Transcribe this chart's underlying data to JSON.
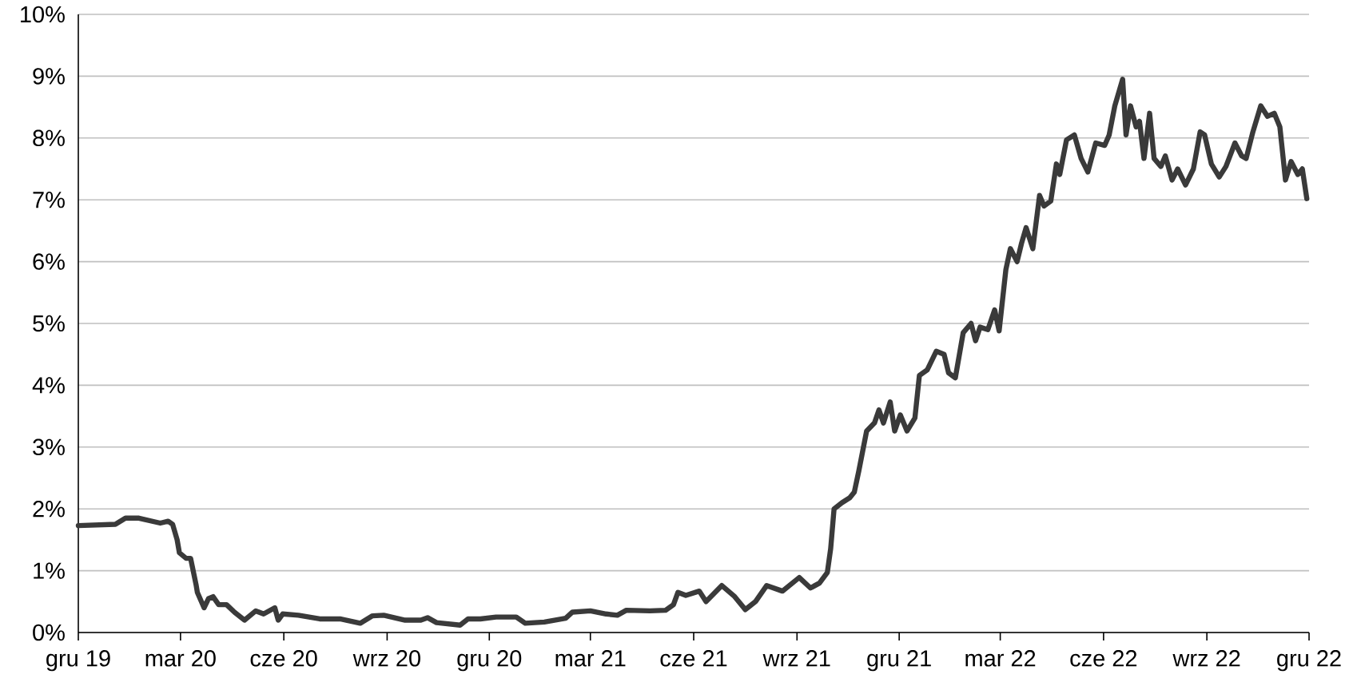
{
  "chart_data": {
    "type": "line",
    "color": "#3a3a3a",
    "line_style": "solid",
    "grid": "y",
    "xlim": [
      "2019-12-01",
      "2022-12-01"
    ],
    "ylim": [
      0,
      10
    ],
    "xticks": [
      {
        "value": "2019-12-01",
        "label": "gru 19"
      },
      {
        "value": "2020-03-01",
        "label": "mar 20"
      },
      {
        "value": "2020-06-01",
        "label": "cze 20"
      },
      {
        "value": "2020-09-01",
        "label": "wrz 20"
      },
      {
        "value": "2020-12-01",
        "label": "gru 20"
      },
      {
        "value": "2021-03-01",
        "label": "mar 21"
      },
      {
        "value": "2021-06-01",
        "label": "cze 21"
      },
      {
        "value": "2021-09-01",
        "label": "wrz 21"
      },
      {
        "value": "2021-12-01",
        "label": "gru 21"
      },
      {
        "value": "2022-03-01",
        "label": "mar 22"
      },
      {
        "value": "2022-06-01",
        "label": "cze 22"
      },
      {
        "value": "2022-09-01",
        "label": "wrz 22"
      },
      {
        "value": "2022-12-01",
        "label": "gru 22"
      }
    ],
    "yticks": [
      {
        "value": 0,
        "label": "0%"
      },
      {
        "value": 1,
        "label": "1%"
      },
      {
        "value": 2,
        "label": "2%"
      },
      {
        "value": 3,
        "label": "3%"
      },
      {
        "value": 4,
        "label": "4%"
      },
      {
        "value": 5,
        "label": "5%"
      },
      {
        "value": 6,
        "label": "6%"
      },
      {
        "value": 7,
        "label": "7%"
      },
      {
        "value": 8,
        "label": "8%"
      },
      {
        "value": 9,
        "label": "9%"
      },
      {
        "value": 10,
        "label": "10%"
      }
    ],
    "x": [
      "2019-12-01",
      "2020-01-03",
      "2020-01-12",
      "2020-01-24",
      "2020-02-12",
      "2020-02-19",
      "2020-02-23",
      "2020-02-27",
      "2020-02-29",
      "2020-03-06",
      "2020-03-10",
      "2020-03-15",
      "2020-03-16",
      "2020-03-22",
      "2020-03-26",
      "2020-03-30",
      "2020-04-04",
      "2020-04-11",
      "2020-04-18",
      "2020-04-27",
      "2020-05-07",
      "2020-05-14",
      "2020-05-24",
      "2020-05-27",
      "2020-05-31",
      "2020-06-14",
      "2020-07-03",
      "2020-07-21",
      "2020-08-08",
      "2020-08-19",
      "2020-08-29",
      "2020-09-17",
      "2020-10-01",
      "2020-10-07",
      "2020-10-15",
      "2020-11-05",
      "2020-11-12",
      "2020-11-23",
      "2020-12-07",
      "2020-12-25",
      "2021-01-02",
      "2021-01-19",
      "2021-02-07",
      "2021-02-13",
      "2021-03-01",
      "2021-03-15",
      "2021-03-25",
      "2021-04-02",
      "2021-04-23",
      "2021-05-07",
      "2021-05-14",
      "2021-05-18",
      "2021-05-25",
      "2021-06-06",
      "2021-06-12",
      "2021-06-26",
      "2021-07-07",
      "2021-07-17",
      "2021-07-26",
      "2021-08-05",
      "2021-08-19",
      "2021-09-03",
      "2021-09-13",
      "2021-09-21",
      "2021-09-28",
      "2021-10-01",
      "2021-10-04",
      "2021-10-11",
      "2021-10-18",
      "2021-10-22",
      "2021-10-26",
      "2021-11-02",
      "2021-11-09",
      "2021-11-13",
      "2021-11-17",
      "2021-11-23",
      "2021-11-27",
      "2021-12-02",
      "2021-12-08",
      "2021-12-15",
      "2021-12-19",
      "2021-12-26",
      "2022-01-03",
      "2022-01-10",
      "2022-01-14",
      "2022-01-20",
      "2022-01-27",
      "2022-02-03",
      "2022-02-07",
      "2022-02-11",
      "2022-02-18",
      "2022-02-24",
      "2022-02-28",
      "2022-03-06",
      "2022-03-10",
      "2022-03-16",
      "2022-03-20",
      "2022-03-24",
      "2022-03-30",
      "2022-04-05",
      "2022-04-09",
      "2022-04-15",
      "2022-04-20",
      "2022-04-23",
      "2022-04-29",
      "2022-05-06",
      "2022-05-12",
      "2022-05-18",
      "2022-05-25",
      "2022-06-02",
      "2022-06-06",
      "2022-06-11",
      "2022-06-18",
      "2022-06-21",
      "2022-06-25",
      "2022-06-30",
      "2022-07-03",
      "2022-07-07",
      "2022-07-12",
      "2022-07-16",
      "2022-07-22",
      "2022-07-26",
      "2022-08-01",
      "2022-08-06",
      "2022-08-13",
      "2022-08-20",
      "2022-08-26",
      "2022-08-30",
      "2022-09-05",
      "2022-09-12",
      "2022-09-18",
      "2022-09-26",
      "2022-10-02",
      "2022-10-06",
      "2022-10-12",
      "2022-10-19",
      "2022-10-25",
      "2022-10-31",
      "2022-11-05",
      "2022-11-10",
      "2022-11-15",
      "2022-11-21",
      "2022-11-25",
      "2022-11-29"
    ],
    "values": [
      1.73,
      1.75,
      1.85,
      1.85,
      1.77,
      1.8,
      1.75,
      1.5,
      1.29,
      1.2,
      1.2,
      0.76,
      0.65,
      0.4,
      0.55,
      0.58,
      0.45,
      0.45,
      0.33,
      0.2,
      0.35,
      0.3,
      0.4,
      0.2,
      0.3,
      0.28,
      0.22,
      0.22,
      0.15,
      0.27,
      0.28,
      0.2,
      0.2,
      0.24,
      0.16,
      0.12,
      0.22,
      0.22,
      0.25,
      0.25,
      0.15,
      0.17,
      0.23,
      0.33,
      0.35,
      0.3,
      0.28,
      0.36,
      0.35,
      0.36,
      0.45,
      0.65,
      0.6,
      0.67,
      0.5,
      0.76,
      0.59,
      0.37,
      0.5,
      0.76,
      0.67,
      0.89,
      0.72,
      0.8,
      0.97,
      1.36,
      2.0,
      2.1,
      2.18,
      2.27,
      2.61,
      3.26,
      3.39,
      3.6,
      3.39,
      3.73,
      3.26,
      3.52,
      3.26,
      3.47,
      4.16,
      4.25,
      4.55,
      4.5,
      4.2,
      4.12,
      4.85,
      5.0,
      4.72,
      4.94,
      4.9,
      5.22,
      4.88,
      5.87,
      6.21,
      6.0,
      6.3,
      6.55,
      6.21,
      7.07,
      6.9,
      6.98,
      7.58,
      7.41,
      7.97,
      8.05,
      7.67,
      7.45,
      7.92,
      7.88,
      8.05,
      8.52,
      8.95,
      8.05,
      8.52,
      8.18,
      8.27,
      7.67,
      8.4,
      7.67,
      7.54,
      7.71,
      7.32,
      7.5,
      7.24,
      7.5,
      8.1,
      8.05,
      7.58,
      7.37,
      7.54,
      7.92,
      7.71,
      7.67,
      8.1,
      8.52,
      8.35,
      8.4,
      8.18,
      7.32,
      7.62,
      7.41,
      7.5,
      7.02
    ]
  }
}
